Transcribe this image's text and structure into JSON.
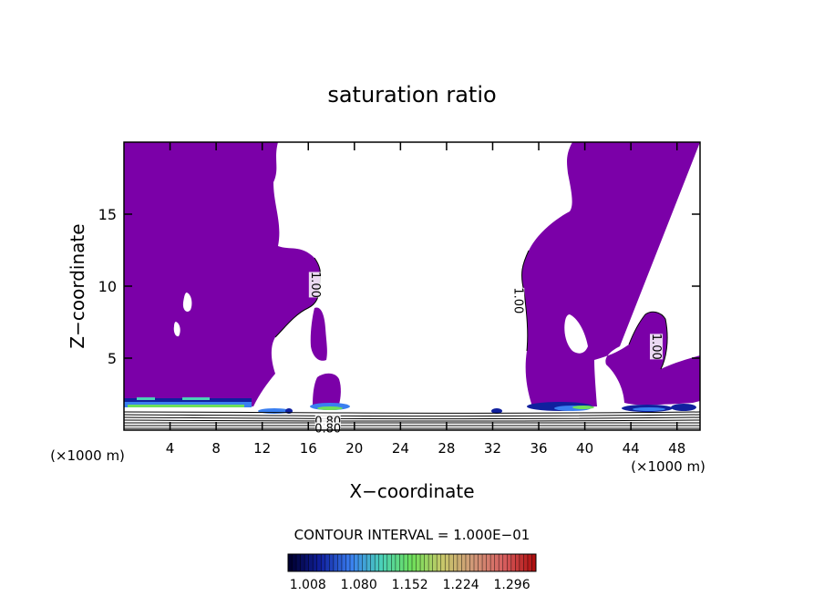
{
  "chart_data": {
    "type": "heatmap",
    "title": "saturation ratio",
    "xlabel": "X−coordinate",
    "ylabel": "Z−coordinate",
    "x_unit_label": "(×1000 m)",
    "z_unit_label": "(×1000 m)",
    "xlim": [
      0,
      50
    ],
    "ylim": [
      0,
      20
    ],
    "xticks": [
      4,
      8,
      12,
      16,
      20,
      24,
      28,
      32,
      36,
      40,
      44,
      48
    ],
    "yticks": [
      5,
      10,
      15
    ],
    "contour_interval_text": "CONTOUR INTERVAL = 1.000E−01",
    "contour_labels": [
      {
        "text": "1.00",
        "x": 16.6,
        "z": 10.1,
        "angle": 90
      },
      {
        "text": "1.00",
        "x": 34.2,
        "z": 9.0,
        "angle": 90
      },
      {
        "text": "1.00",
        "x": 46.2,
        "z": 5.8,
        "angle": 90
      },
      {
        "text": "0.80",
        "x": 17.7,
        "z": 0.6,
        "angle": 0
      },
      {
        "text": "0.80",
        "x": 17.7,
        "z": 0.1,
        "angle": 0
      }
    ],
    "colorbar": {
      "ticks": [
        "1.008",
        "1.080",
        "1.152",
        "1.224",
        "1.296"
      ],
      "values": [
        1.008,
        1.08,
        1.152,
        1.224,
        1.296
      ],
      "range": [
        0.98,
        1.33
      ],
      "colors": [
        "#000030",
        "#10209e",
        "#3a7ff0",
        "#4bd1b8",
        "#6ee05a",
        "#c8c86a",
        "#d09878",
        "#d86060",
        "#b01010"
      ]
    },
    "fill_color": "#7b00a8"
  }
}
